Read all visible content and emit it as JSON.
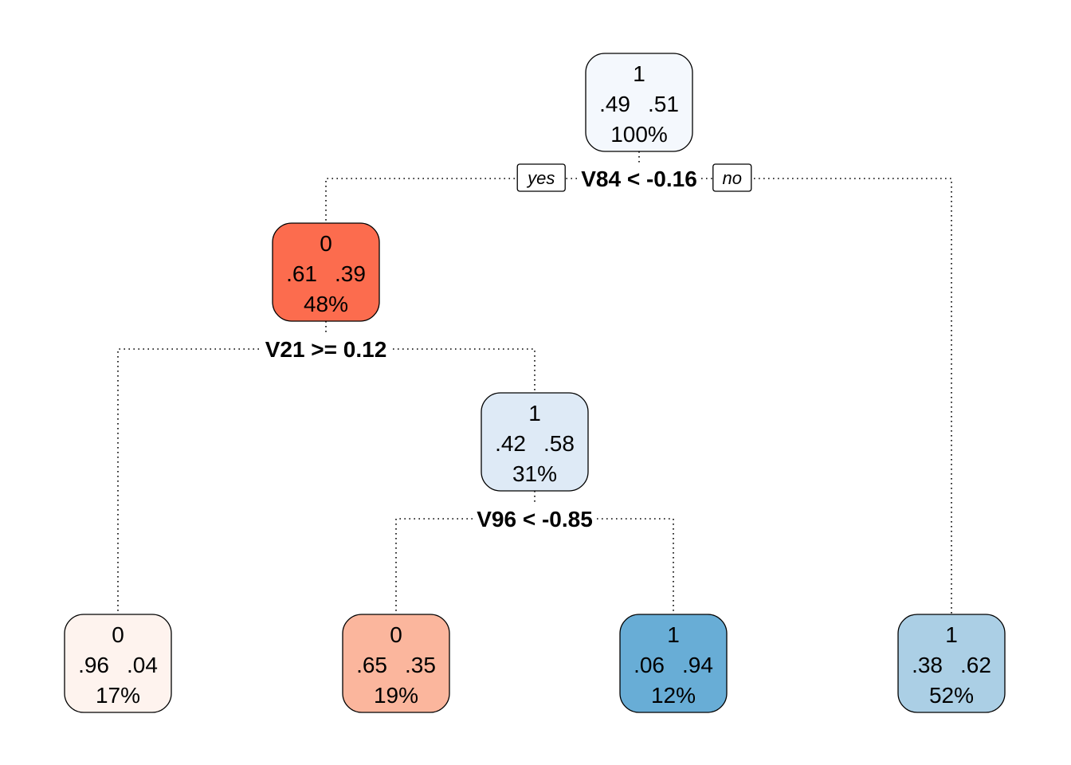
{
  "tree": {
    "edge_labels": {
      "yes": "yes",
      "no": "no"
    },
    "nodes": [
      {
        "id": "root",
        "class_label": "1",
        "p0": ".49",
        "p1": ".51",
        "pct": "100%",
        "fill": "#F4F8FD",
        "split": "V84 < -0.16",
        "children": [
          "n2",
          "n7"
        ],
        "show_tags": true
      },
      {
        "id": "n2",
        "class_label": "0",
        "p0": ".61",
        "p1": ".39",
        "pct": "48%",
        "fill": "#FC6C4E",
        "split": "V21 >= 0.12",
        "children": [
          "n4",
          "n5"
        ]
      },
      {
        "id": "n5",
        "class_label": "1",
        "p0": ".42",
        "p1": ".58",
        "pct": "31%",
        "fill": "#DEEAF6",
        "split": "V96 < -0.85",
        "children": [
          "n10",
          "n11"
        ]
      },
      {
        "id": "n4",
        "class_label": "0",
        "p0": ".96",
        "p1": ".04",
        "pct": "17%",
        "fill": "#FEF3EE"
      },
      {
        "id": "n10",
        "class_label": "0",
        "p0": ".65",
        "p1": ".35",
        "pct": "19%",
        "fill": "#FBB69D"
      },
      {
        "id": "n11",
        "class_label": "1",
        "p0": ".06",
        "p1": ".94",
        "pct": "12%",
        "fill": "#68ADD6"
      },
      {
        "id": "n7",
        "class_label": "1",
        "p0": ".38",
        "p1": ".62",
        "pct": "52%",
        "fill": "#ABCFE5"
      }
    ]
  }
}
